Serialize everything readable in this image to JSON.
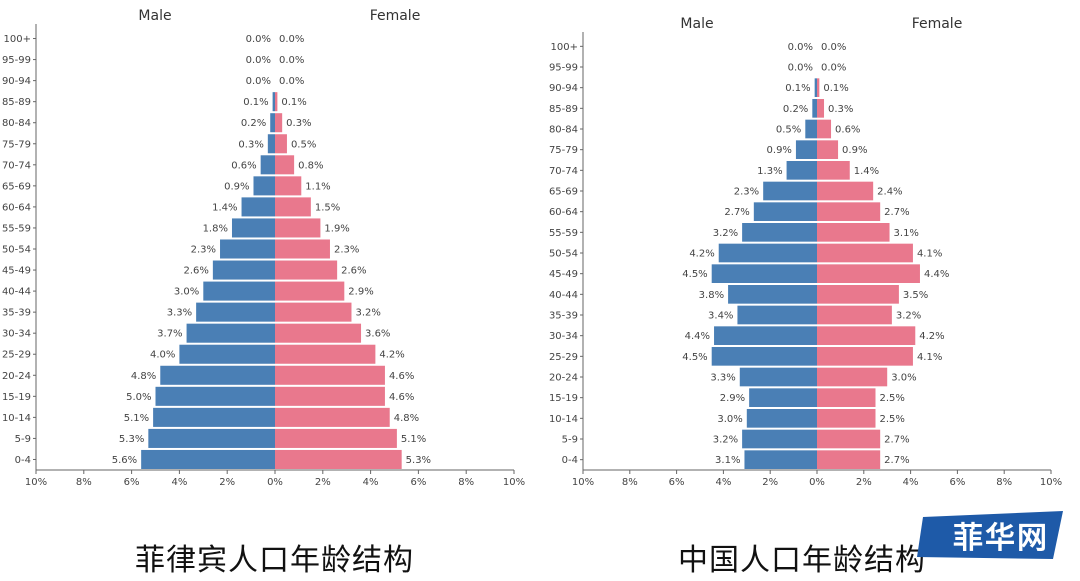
{
  "captions": {
    "philippines": "菲律宾人口年龄结构",
    "china": "中国人口年龄结构"
  },
  "logo": {
    "text": "菲华网"
  },
  "colors": {
    "male": "#4a7fb5",
    "female": "#e9788d",
    "axis": "#666666",
    "grid_text": "#444444"
  },
  "chart_data": [
    {
      "type": "bar",
      "orientation": "population-pyramid",
      "male_label": "Male",
      "female_label": "Female",
      "categories": [
        "100+",
        "95-99",
        "90-94",
        "85-89",
        "80-84",
        "75-79",
        "70-74",
        "65-69",
        "60-64",
        "55-59",
        "50-54",
        "45-49",
        "40-44",
        "35-39",
        "30-34",
        "25-29",
        "20-24",
        "15-19",
        "10-14",
        "5-9",
        "0-4"
      ],
      "series": [
        {
          "name": "Male",
          "values": [
            0.0,
            0.0,
            0.0,
            0.1,
            0.2,
            0.3,
            0.6,
            0.9,
            1.4,
            1.8,
            2.3,
            2.6,
            3.0,
            3.3,
            3.7,
            4.0,
            4.8,
            5.0,
            5.1,
            5.3,
            5.6
          ]
        },
        {
          "name": "Female",
          "values": [
            0.0,
            0.0,
            0.0,
            0.1,
            0.3,
            0.5,
            0.8,
            1.1,
            1.5,
            1.9,
            2.3,
            2.6,
            2.9,
            3.2,
            3.6,
            4.2,
            4.6,
            4.6,
            4.8,
            5.1,
            5.3
          ]
        }
      ],
      "xticks": [
        "10%",
        "8%",
        "6%",
        "4%",
        "2%",
        "0%",
        "2%",
        "4%",
        "6%",
        "8%",
        "10%"
      ],
      "xlim": [
        -10,
        10
      ]
    },
    {
      "type": "bar",
      "orientation": "population-pyramid",
      "male_label": "Male",
      "female_label": "Female",
      "categories": [
        "100+",
        "95-99",
        "90-94",
        "85-89",
        "80-84",
        "75-79",
        "70-74",
        "65-69",
        "60-64",
        "55-59",
        "50-54",
        "45-49",
        "40-44",
        "35-39",
        "30-34",
        "25-29",
        "20-24",
        "15-19",
        "10-14",
        "5-9",
        "0-4"
      ],
      "series": [
        {
          "name": "Male",
          "values": [
            0.0,
            0.0,
            0.1,
            0.2,
            0.5,
            0.9,
            1.3,
            2.3,
            2.7,
            3.2,
            4.2,
            4.5,
            3.8,
            3.4,
            4.4,
            4.5,
            3.3,
            2.9,
            3.0,
            3.2,
            3.1
          ]
        },
        {
          "name": "Female",
          "values": [
            0.0,
            0.0,
            0.1,
            0.3,
            0.6,
            0.9,
            1.4,
            2.4,
            2.7,
            3.1,
            4.1,
            4.4,
            3.5,
            3.2,
            4.2,
            4.1,
            3.0,
            2.5,
            2.5,
            2.7,
            2.7
          ]
        }
      ],
      "xticks": [
        "10%",
        "8%",
        "6%",
        "4%",
        "2%",
        "0%",
        "2%",
        "4%",
        "6%",
        "8%",
        "10%"
      ],
      "xlim": [
        -10,
        10
      ]
    }
  ]
}
